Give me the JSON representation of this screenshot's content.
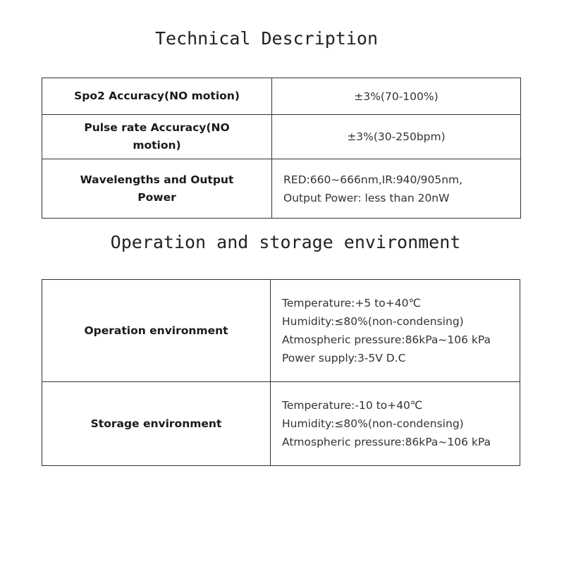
{
  "technical": {
    "title": "Technical Description",
    "rows": [
      {
        "label": "Spo2 Accuracy(NO motion)",
        "value": [
          "±3%(70-100%)"
        ]
      },
      {
        "label": "Pulse rate Accuracy(NO motion)",
        "value": [
          "±3%(30-250bpm)"
        ]
      },
      {
        "label": "Wavelengths and Output Power",
        "value": [
          "RED:660~666nm,IR:940/905nm,",
          "Output Power: less than 20nW"
        ]
      }
    ]
  },
  "environment": {
    "title": "Operation and storage environment",
    "rows": [
      {
        "label": "Operation environment",
        "value": [
          "Temperature:+5 to+40℃",
          "Humidity:≤80%(non-condensing)",
          "Atmospheric pressure:86kPa~106 kPa",
          "Power supply:3-5V D.C"
        ]
      },
      {
        "label": "Storage environment",
        "value": [
          "Temperature:-10 to+40℃",
          "Humidity:≤80%(non-condensing)",
          "Atmospheric pressure:86kPa~106 kPa"
        ]
      }
    ]
  }
}
